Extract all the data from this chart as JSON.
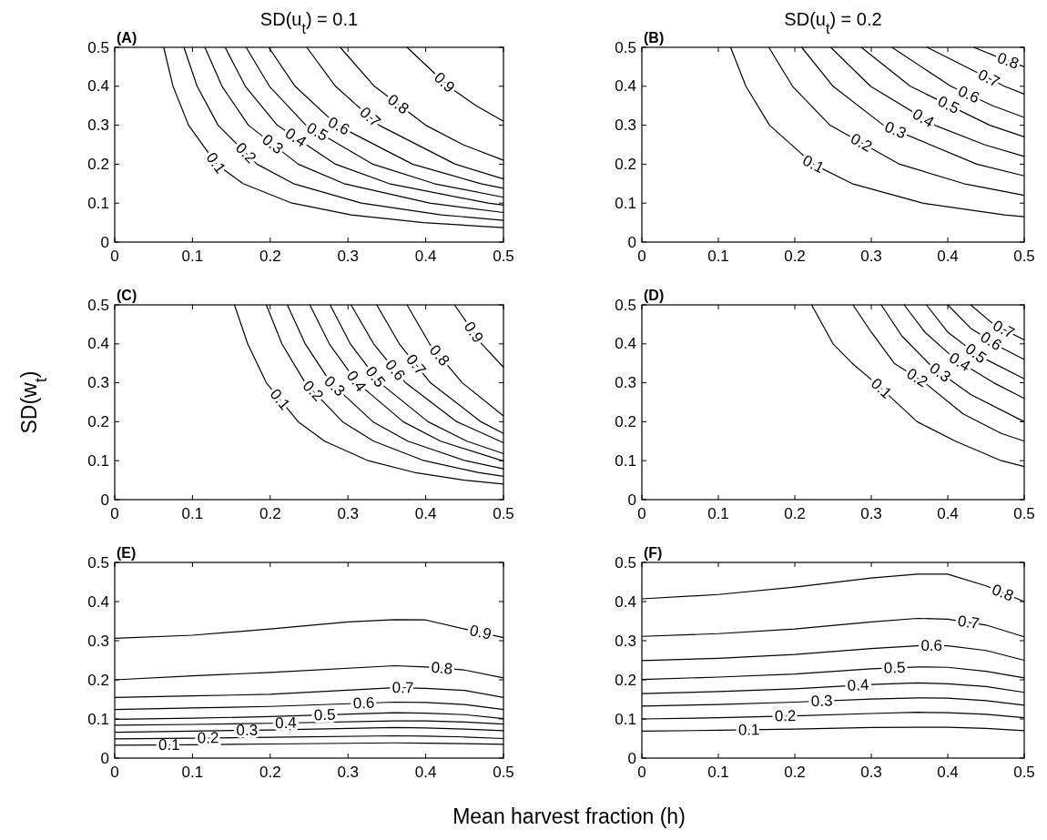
{
  "chart_data": [
    {
      "type": "line",
      "title": "SD(u$_{t}$) = 0.1",
      "annotations": [
        "(A)"
      ],
      "xlim": [
        0,
        0.5
      ],
      "ylim": [
        0,
        0.5
      ],
      "xticks": [
        0,
        0.1,
        0.2,
        0.3,
        0.4,
        0.5
      ],
      "yticks": [
        0,
        0.1,
        0.2,
        0.3,
        0.4,
        0.5
      ],
      "series": [
        {
          "name": "0.1",
          "color": "#000000",
          "x": [
            0.063,
            0.075,
            0.095,
            0.131,
            0.165,
            0.228,
            0.304,
            0.397,
            0.5
          ],
          "values": [
            0.5,
            0.4,
            0.3,
            0.2,
            0.15,
            0.1,
            0.07,
            0.05,
            0.037
          ]
        },
        {
          "name": "0.2",
          "color": "#000000",
          "x": [
            0.089,
            0.106,
            0.133,
            0.183,
            0.23,
            0.317,
            0.42,
            0.5
          ],
          "values": [
            0.5,
            0.4,
            0.3,
            0.2,
            0.15,
            0.1,
            0.07,
            0.056
          ]
        },
        {
          "name": "0.3",
          "color": "#000000",
          "x": [
            0.116,
            0.138,
            0.172,
            0.236,
            0.295,
            0.405,
            0.5
          ],
          "values": [
            0.5,
            0.4,
            0.3,
            0.2,
            0.15,
            0.1,
            0.076
          ]
        },
        {
          "name": "0.4",
          "color": "#000000",
          "x": [
            0.142,
            0.168,
            0.209,
            0.284,
            0.353,
            0.48,
            0.5
          ],
          "values": [
            0.5,
            0.4,
            0.3,
            0.2,
            0.15,
            0.1,
            0.095
          ]
        },
        {
          "name": "0.5",
          "color": "#000000",
          "x": [
            0.169,
            0.199,
            0.246,
            0.332,
            0.411,
            0.5
          ],
          "values": [
            0.5,
            0.4,
            0.3,
            0.2,
            0.15,
            0.115
          ]
        },
        {
          "name": "0.6",
          "color": "#000000",
          "x": [
            0.198,
            0.232,
            0.286,
            0.383,
            0.471,
            0.5
          ],
          "values": [
            0.5,
            0.4,
            0.3,
            0.2,
            0.15,
            0.138
          ]
        },
        {
          "name": "0.7",
          "color": "#000000",
          "x": [
            0.247,
            0.284,
            0.34,
            0.438,
            0.5
          ],
          "values": [
            0.5,
            0.4,
            0.3,
            0.2,
            0.162
          ]
        },
        {
          "name": "0.8",
          "color": "#000000",
          "x": [
            0.29,
            0.334,
            0.4,
            0.448,
            0.5
          ],
          "values": [
            0.5,
            0.4,
            0.3,
            0.25,
            0.21
          ]
        },
        {
          "name": "0.9",
          "color": "#000000",
          "x": [
            0.376,
            0.429,
            0.465,
            0.5
          ],
          "values": [
            0.5,
            0.4,
            0.35,
            0.31
          ]
        }
      ]
    },
    {
      "type": "line",
      "title": "SD(u$_{t}$) = 0.2",
      "annotations": [
        "(B)"
      ],
      "xlim": [
        0,
        0.5
      ],
      "ylim": [
        0,
        0.5
      ],
      "xticks": [
        0,
        0.1,
        0.2,
        0.3,
        0.4,
        0.5
      ],
      "yticks": [
        0,
        0.1,
        0.2,
        0.3,
        0.4,
        0.5
      ],
      "series": [
        {
          "name": "0.1",
          "color": "#000000",
          "x": [
            0.116,
            0.136,
            0.167,
            0.224,
            0.275,
            0.367,
            0.474,
            0.5
          ],
          "values": [
            0.5,
            0.4,
            0.3,
            0.2,
            0.15,
            0.1,
            0.07,
            0.065
          ]
        },
        {
          "name": "0.2",
          "color": "#000000",
          "x": [
            0.166,
            0.197,
            0.246,
            0.337,
            0.421,
            0.5
          ],
          "values": [
            0.5,
            0.4,
            0.3,
            0.2,
            0.15,
            0.12
          ]
        },
        {
          "name": "0.3",
          "color": "#000000",
          "x": [
            0.209,
            0.25,
            0.316,
            0.438,
            0.5
          ],
          "values": [
            0.5,
            0.4,
            0.3,
            0.2,
            0.17
          ]
        },
        {
          "name": "0.4",
          "color": "#000000",
          "x": [
            0.247,
            0.299,
            0.383,
            0.448,
            0.5
          ],
          "values": [
            0.5,
            0.4,
            0.3,
            0.25,
            0.22
          ]
        },
        {
          "name": "0.5",
          "color": "#000000",
          "x": [
            0.287,
            0.351,
            0.455,
            0.5
          ],
          "values": [
            0.5,
            0.4,
            0.3,
            0.27
          ]
        },
        {
          "name": "0.6",
          "color": "#000000",
          "x": [
            0.327,
            0.404,
            0.459,
            0.5
          ],
          "values": [
            0.5,
            0.4,
            0.35,
            0.32
          ]
        },
        {
          "name": "0.7",
          "color": "#000000",
          "x": [
            0.373,
            0.474,
            0.5
          ],
          "values": [
            0.5,
            0.4,
            0.38
          ]
        },
        {
          "name": "0.8",
          "color": "#000000",
          "x": [
            0.434,
            0.472,
            0.5
          ],
          "values": [
            0.5,
            0.47,
            0.45
          ]
        }
      ]
    },
    {
      "type": "line",
      "ylabel": "SD(w$_{t}$)",
      "annotations": [
        "(C)"
      ],
      "xlim": [
        0,
        0.5
      ],
      "ylim": [
        0,
        0.5
      ],
      "xticks": [
        0,
        0.1,
        0.2,
        0.3,
        0.4,
        0.5
      ],
      "yticks": [
        0,
        0.1,
        0.2,
        0.3,
        0.4,
        0.5
      ],
      "series": [
        {
          "name": "0.1",
          "color": "#000000",
          "x": [
            0.154,
            0.171,
            0.195,
            0.236,
            0.27,
            0.326,
            0.385,
            0.45,
            0.5
          ],
          "values": [
            0.5,
            0.4,
            0.3,
            0.2,
            0.15,
            0.1,
            0.07,
            0.05,
            0.04
          ]
        },
        {
          "name": "0.2",
          "color": "#000000",
          "x": [
            0.195,
            0.215,
            0.245,
            0.293,
            0.333,
            0.398,
            0.467,
            0.5
          ],
          "values": [
            0.5,
            0.4,
            0.3,
            0.2,
            0.15,
            0.1,
            0.07,
            0.06
          ]
        },
        {
          "name": "0.3",
          "color": "#000000",
          "x": [
            0.222,
            0.245,
            0.278,
            0.332,
            0.377,
            0.451,
            0.5
          ],
          "values": [
            0.5,
            0.4,
            0.3,
            0.2,
            0.15,
            0.1,
            0.079
          ]
        },
        {
          "name": "0.4",
          "color": "#000000",
          "x": [
            0.251,
            0.276,
            0.312,
            0.371,
            0.419,
            0.5
          ],
          "values": [
            0.5,
            0.4,
            0.3,
            0.2,
            0.15,
            0.099
          ]
        },
        {
          "name": "0.5",
          "color": "#000000",
          "x": [
            0.277,
            0.303,
            0.341,
            0.403,
            0.453,
            0.5
          ],
          "values": [
            0.5,
            0.4,
            0.3,
            0.2,
            0.15,
            0.118
          ]
        },
        {
          "name": "0.6",
          "color": "#000000",
          "x": [
            0.304,
            0.333,
            0.374,
            0.44,
            0.5
          ],
          "values": [
            0.5,
            0.4,
            0.3,
            0.2,
            0.146
          ]
        },
        {
          "name": "0.7",
          "color": "#000000",
          "x": [
            0.337,
            0.366,
            0.406,
            0.471,
            0.5
          ],
          "values": [
            0.5,
            0.4,
            0.3,
            0.2,
            0.17
          ]
        },
        {
          "name": "0.8",
          "color": "#000000",
          "x": [
            0.376,
            0.405,
            0.447,
            0.5
          ],
          "values": [
            0.5,
            0.4,
            0.3,
            0.215
          ]
        },
        {
          "name": "0.9",
          "color": "#000000",
          "x": [
            0.437,
            0.472,
            0.5
          ],
          "values": [
            0.5,
            0.4,
            0.34
          ]
        }
      ]
    },
    {
      "type": "line",
      "annotations": [
        "(D)"
      ],
      "xlim": [
        0,
        0.5
      ],
      "ylim": [
        0,
        0.5
      ],
      "xticks": [
        0,
        0.1,
        0.2,
        0.3,
        0.4,
        0.5
      ],
      "yticks": [
        0,
        0.1,
        0.2,
        0.3,
        0.4,
        0.5
      ],
      "series": [
        {
          "name": "0.1",
          "color": "#000000",
          "x": [
            0.222,
            0.25,
            0.275,
            0.305,
            0.36,
            0.41,
            0.47,
            0.5
          ],
          "values": [
            0.5,
            0.4,
            0.35,
            0.3,
            0.2,
            0.15,
            0.1,
            0.085
          ]
        },
        {
          "name": "0.2",
          "color": "#000000",
          "x": [
            0.276,
            0.3,
            0.33,
            0.37,
            0.42,
            0.47,
            0.5
          ],
          "values": [
            0.5,
            0.43,
            0.35,
            0.3,
            0.22,
            0.17,
            0.15
          ]
        },
        {
          "name": "0.3",
          "color": "#000000",
          "x": [
            0.313,
            0.34,
            0.38,
            0.43,
            0.5
          ],
          "values": [
            0.5,
            0.42,
            0.34,
            0.27,
            0.2
          ]
        },
        {
          "name": "0.4",
          "color": "#000000",
          "x": [
            0.343,
            0.37,
            0.41,
            0.46,
            0.5
          ],
          "values": [
            0.5,
            0.43,
            0.36,
            0.3,
            0.26
          ]
        },
        {
          "name": "0.5",
          "color": "#000000",
          "x": [
            0.372,
            0.4,
            0.44,
            0.5
          ],
          "values": [
            0.5,
            0.43,
            0.37,
            0.31
          ]
        },
        {
          "name": "0.6",
          "color": "#000000",
          "x": [
            0.4,
            0.43,
            0.47,
            0.5
          ],
          "values": [
            0.5,
            0.44,
            0.39,
            0.36
          ]
        },
        {
          "name": "0.7",
          "color": "#000000",
          "x": [
            0.43,
            0.46,
            0.5
          ],
          "values": [
            0.5,
            0.45,
            0.41
          ]
        }
      ]
    },
    {
      "type": "line",
      "xlabel": "Mean harvest fraction (h)",
      "annotations": [
        "(E)"
      ],
      "xlim": [
        0,
        0.5
      ],
      "ylim": [
        0,
        0.5
      ],
      "xticks": [
        0,
        0.1,
        0.2,
        0.3,
        0.4,
        0.5
      ],
      "yticks": [
        0,
        0.1,
        0.2,
        0.3,
        0.4,
        0.5
      ],
      "series": [
        {
          "name": "0.1",
          "color": "#000000",
          "x": [
            0,
            0.1,
            0.2,
            0.36,
            0.4,
            0.45,
            0.5
          ],
          "values": [
            0.033,
            0.034,
            0.036,
            0.039,
            0.038,
            0.037,
            0.035
          ]
        },
        {
          "name": "0.2",
          "color": "#000000",
          "x": [
            0,
            0.1,
            0.2,
            0.36,
            0.4,
            0.45,
            0.5
          ],
          "values": [
            0.049,
            0.051,
            0.053,
            0.057,
            0.056,
            0.054,
            0.05
          ]
        },
        {
          "name": "0.3",
          "color": "#000000",
          "x": [
            0,
            0.1,
            0.2,
            0.36,
            0.4,
            0.45,
            0.5
          ],
          "values": [
            0.066,
            0.069,
            0.072,
            0.078,
            0.077,
            0.074,
            0.07
          ]
        },
        {
          "name": "0.4",
          "color": "#000000",
          "x": [
            0,
            0.1,
            0.2,
            0.36,
            0.4,
            0.45,
            0.5
          ],
          "values": [
            0.084,
            0.086,
            0.089,
            0.095,
            0.095,
            0.092,
            0.087
          ]
        },
        {
          "name": "0.5",
          "color": "#000000",
          "x": [
            0,
            0.1,
            0.2,
            0.36,
            0.4,
            0.45,
            0.5
          ],
          "values": [
            0.099,
            0.102,
            0.106,
            0.116,
            0.115,
            0.111,
            0.101
          ]
        },
        {
          "name": "0.6",
          "color": "#000000",
          "x": [
            0,
            0.1,
            0.2,
            0.36,
            0.4,
            0.45,
            0.5
          ],
          "values": [
            0.124,
            0.128,
            0.132,
            0.143,
            0.142,
            0.137,
            0.124
          ]
        },
        {
          "name": "0.7",
          "color": "#000000",
          "x": [
            0,
            0.1,
            0.2,
            0.36,
            0.4,
            0.45,
            0.5
          ],
          "values": [
            0.155,
            0.159,
            0.163,
            0.18,
            0.178,
            0.173,
            0.155
          ]
        },
        {
          "name": "0.8",
          "color": "#000000",
          "x": [
            0,
            0.1,
            0.2,
            0.36,
            0.4,
            0.45,
            0.5
          ],
          "values": [
            0.2,
            0.21,
            0.219,
            0.236,
            0.233,
            0.225,
            0.205
          ]
        },
        {
          "name": "0.9",
          "color": "#000000",
          "x": [
            0,
            0.1,
            0.2,
            0.3,
            0.36,
            0.4,
            0.45,
            0.5
          ],
          "values": [
            0.306,
            0.314,
            0.33,
            0.348,
            0.354,
            0.353,
            0.33,
            0.308
          ]
        }
      ]
    },
    {
      "type": "line",
      "annotations": [
        "(F)"
      ],
      "xlim": [
        0,
        0.5
      ],
      "ylim": [
        0,
        0.5
      ],
      "xticks": [
        0,
        0.1,
        0.2,
        0.3,
        0.4,
        0.5
      ],
      "yticks": [
        0,
        0.1,
        0.2,
        0.3,
        0.4,
        0.5
      ],
      "series": [
        {
          "name": "0.1",
          "color": "#000000",
          "x": [
            0,
            0.1,
            0.2,
            0.3,
            0.36,
            0.4,
            0.45,
            0.5
          ],
          "values": [
            0.069,
            0.071,
            0.074,
            0.078,
            0.079,
            0.079,
            0.076,
            0.07
          ]
        },
        {
          "name": "0.2",
          "color": "#000000",
          "x": [
            0,
            0.1,
            0.2,
            0.3,
            0.36,
            0.4,
            0.45,
            0.5
          ],
          "values": [
            0.1,
            0.103,
            0.108,
            0.114,
            0.117,
            0.116,
            0.112,
            0.103
          ]
        },
        {
          "name": "0.3",
          "color": "#000000",
          "x": [
            0,
            0.1,
            0.2,
            0.3,
            0.36,
            0.4,
            0.45,
            0.5
          ],
          "values": [
            0.133,
            0.137,
            0.143,
            0.151,
            0.154,
            0.153,
            0.147,
            0.135
          ]
        },
        {
          "name": "0.4",
          "color": "#000000",
          "x": [
            0,
            0.1,
            0.2,
            0.3,
            0.36,
            0.4,
            0.45,
            0.5
          ],
          "values": [
            0.165,
            0.17,
            0.177,
            0.188,
            0.192,
            0.19,
            0.183,
            0.168
          ]
        },
        {
          "name": "0.5",
          "color": "#000000",
          "x": [
            0,
            0.1,
            0.2,
            0.3,
            0.36,
            0.4,
            0.45,
            0.5
          ],
          "values": [
            0.201,
            0.207,
            0.215,
            0.228,
            0.233,
            0.232,
            0.222,
            0.205
          ]
        },
        {
          "name": "0.6",
          "color": "#000000",
          "x": [
            0,
            0.1,
            0.2,
            0.3,
            0.36,
            0.4,
            0.45,
            0.5
          ],
          "values": [
            0.249,
            0.255,
            0.265,
            0.28,
            0.287,
            0.287,
            0.275,
            0.25
          ]
        },
        {
          "name": "0.7",
          "color": "#000000",
          "x": [
            0,
            0.1,
            0.2,
            0.3,
            0.36,
            0.4,
            0.45,
            0.5
          ],
          "values": [
            0.311,
            0.318,
            0.33,
            0.348,
            0.357,
            0.355,
            0.34,
            0.31
          ]
        },
        {
          "name": "0.8",
          "color": "#000000",
          "x": [
            0,
            0.1,
            0.2,
            0.3,
            0.36,
            0.4,
            0.45,
            0.5
          ],
          "values": [
            0.407,
            0.418,
            0.437,
            0.46,
            0.47,
            0.47,
            0.44,
            0.4
          ]
        }
      ]
    }
  ]
}
